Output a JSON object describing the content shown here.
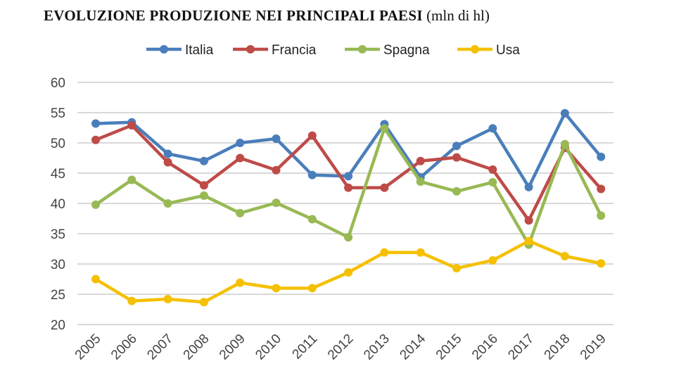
{
  "title": {
    "main": "EVOLUZIONE PRODUZIONE NEI PRINCIPALI PAESI",
    "unit": "(mln di hl)"
  },
  "chart_data": {
    "type": "line",
    "title": "EVOLUZIONE PRODUZIONE NEI PRINCIPALI PAESI (mln di hl)",
    "categories": [
      "2005",
      "2006",
      "2007",
      "2008",
      "2009",
      "2010",
      "2011",
      "2012",
      "2013",
      "2014",
      "2015",
      "2016",
      "2017",
      "2018",
      "2019"
    ],
    "ylim": [
      20,
      60
    ],
    "yticks": [
      "20",
      "25",
      "30",
      "35",
      "40",
      "45",
      "50",
      "55",
      "60"
    ],
    "grid": true,
    "legend": "top",
    "series": [
      {
        "name": "Italia",
        "color": "#4a7ebb",
        "values": [
          53.2,
          53.4,
          48.2,
          47.0,
          50.0,
          50.7,
          44.7,
          44.5,
          53.1,
          44.3,
          49.5,
          52.4,
          42.7,
          54.9,
          47.7
        ]
      },
      {
        "name": "Francia",
        "color": "#be4b48",
        "values": [
          50.5,
          52.9,
          46.8,
          43.0,
          47.5,
          45.5,
          51.2,
          42.6,
          42.6,
          47.0,
          47.6,
          45.6,
          37.2,
          49.2,
          42.4
        ]
      },
      {
        "name": "Spagna",
        "color": "#98b954",
        "values": [
          39.8,
          43.9,
          40.0,
          41.3,
          38.4,
          40.1,
          37.4,
          34.4,
          52.4,
          43.6,
          42.0,
          43.5,
          33.2,
          49.8,
          38.0
        ]
      },
      {
        "name": "Usa",
        "color": "#f5c000",
        "values": [
          27.5,
          23.9,
          24.2,
          23.7,
          26.9,
          26.0,
          26.0,
          28.6,
          31.9,
          31.9,
          29.3,
          30.6,
          33.8,
          31.3,
          30.1
        ]
      }
    ]
  }
}
